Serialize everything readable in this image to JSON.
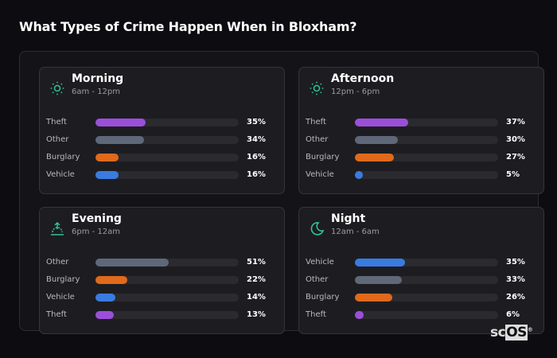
{
  "title": "What Types of Crime Happen When in Bloxham?",
  "colors": {
    "Theft": "#9b4fd8",
    "Other": "#5f6878",
    "Burglary": "#e0691c",
    "Vehicle": "#3a7be0",
    "accent": "#2ec49a"
  },
  "cards": [
    {
      "name": "Morning",
      "time": "6am - 12pm",
      "icon": "sun-icon",
      "rows": [
        {
          "label": "Theft",
          "value": 35,
          "text": "35%"
        },
        {
          "label": "Other",
          "value": 34,
          "text": "34%"
        },
        {
          "label": "Burglary",
          "value": 16,
          "text": "16%"
        },
        {
          "label": "Vehicle",
          "value": 16,
          "text": "16%"
        }
      ]
    },
    {
      "name": "Afternoon",
      "time": "12pm - 6pm",
      "icon": "sun-icon",
      "rows": [
        {
          "label": "Theft",
          "value": 37,
          "text": "37%"
        },
        {
          "label": "Other",
          "value": 30,
          "text": "30%"
        },
        {
          "label": "Burglary",
          "value": 27,
          "text": "27%"
        },
        {
          "label": "Vehicle",
          "value": 5,
          "text": "5%"
        }
      ]
    },
    {
      "name": "Evening",
      "time": "6pm - 12am",
      "icon": "sunset-icon",
      "rows": [
        {
          "label": "Other",
          "value": 51,
          "text": "51%"
        },
        {
          "label": "Burglary",
          "value": 22,
          "text": "22%"
        },
        {
          "label": "Vehicle",
          "value": 14,
          "text": "14%"
        },
        {
          "label": "Theft",
          "value": 13,
          "text": "13%"
        }
      ]
    },
    {
      "name": "Night",
      "time": "12am - 6am",
      "icon": "moon-icon",
      "rows": [
        {
          "label": "Vehicle",
          "value": 35,
          "text": "35%"
        },
        {
          "label": "Other",
          "value": 33,
          "text": "33%"
        },
        {
          "label": "Burglary",
          "value": 26,
          "text": "26%"
        },
        {
          "label": "Theft",
          "value": 6,
          "text": "6%"
        }
      ]
    }
  ],
  "logo": "scOS"
}
